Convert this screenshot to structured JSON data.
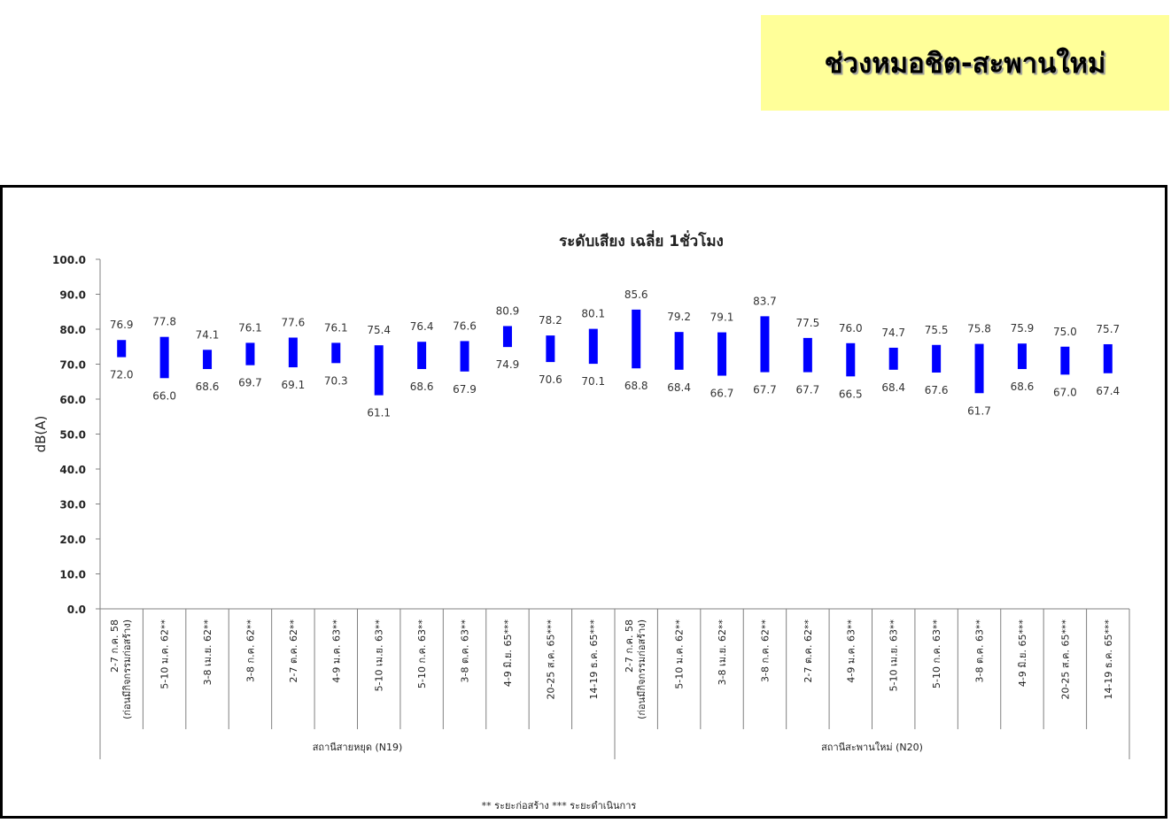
{
  "page_title": "ช่วงหมอชิต-สะพานใหม่",
  "colors": {
    "title_bg": "#ffff99",
    "bar": "#0000ff",
    "axis": "#808080"
  },
  "chart_data": {
    "type": "bar",
    "subtype": "floating-range",
    "title": "ระดับเสียง เฉลี่ย 1ชั่วโมง",
    "ylabel": "dB(A)",
    "ylim": [
      0,
      100
    ],
    "ytick_labels": [
      "0.0",
      "10.0",
      "20.0",
      "30.0",
      "40.0",
      "50.0",
      "60.0",
      "70.0",
      "80.0",
      "90.0",
      "100.0"
    ],
    "categories": [
      "2-7 ก.ค. 58 (ก่อนมีกิจกรรมก่อสร้าง)",
      "5-10 ม.ค. 62**",
      "3-8 เม.ย. 62**",
      "3-8 ก.ค. 62**",
      "2-7 ต.ค. 62**",
      "4-9 ม.ค. 63**",
      "5-10 เม.ย. 63**",
      "5-10 ก.ค. 63**",
      "3-8 ต.ค. 63**",
      "4-9 มิ.ย. 65***",
      "20-25 ส.ค. 65***",
      "14-19 ธ.ค. 65***",
      "2-7 ก.ค. 58 (ก่อนมีกิจกรรมก่อสร้าง)",
      "5-10 ม.ค. 62**",
      "3-8 เม.ย. 62**",
      "3-8 ก.ค. 62**",
      "2-7 ต.ค. 62**",
      "4-9 ม.ค. 63**",
      "5-10 เม.ย. 63**",
      "5-10 ก.ค. 63**",
      "3-8 ต.ค. 63**",
      "4-9 มิ.ย. 65***",
      "20-25 ส.ค. 65***",
      "14-19 ธ.ค. 65***"
    ],
    "groups": [
      {
        "name": "สถานีสายหยุด (N19)",
        "count": 12
      },
      {
        "name": "สถานีสะพานใหม่   (N20)",
        "count": 12
      }
    ],
    "series": [
      {
        "name": "max",
        "values": [
          76.9,
          77.8,
          74.1,
          76.1,
          77.6,
          76.1,
          75.4,
          76.4,
          76.6,
          80.9,
          78.2,
          80.1,
          85.6,
          79.2,
          79.1,
          83.7,
          77.5,
          76.0,
          74.7,
          75.5,
          75.8,
          75.9,
          75.0,
          75.7
        ]
      },
      {
        "name": "min",
        "values": [
          72.0,
          66.0,
          68.6,
          69.7,
          69.1,
          70.3,
          61.1,
          68.6,
          67.9,
          74.9,
          70.6,
          70.1,
          68.8,
          68.4,
          66.7,
          67.7,
          67.7,
          66.5,
          68.4,
          67.6,
          61.7,
          68.6,
          67.0,
          67.4
        ]
      }
    ],
    "grid": false,
    "footnote": "** ระยะก่อสร้าง    *** ระยะดำเนินการ"
  }
}
